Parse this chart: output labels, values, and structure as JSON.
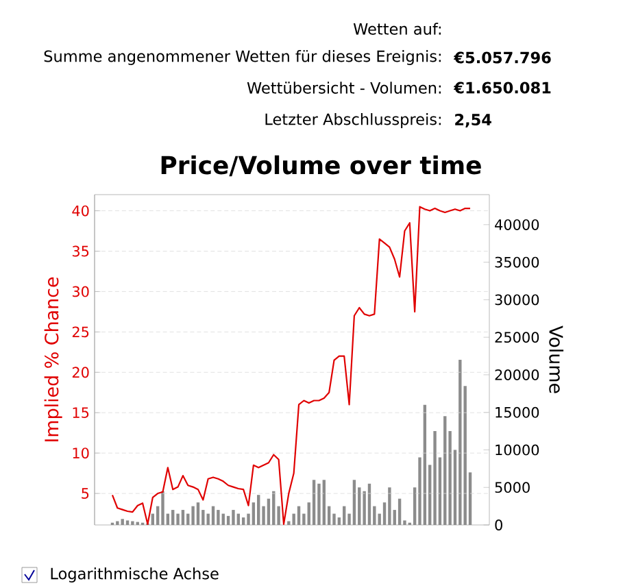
{
  "chart_data": {
    "type": "line",
    "title": "Price/Volume over time",
    "ylabel": "Implied % Chance",
    "y2label": "Volume",
    "categories": [
      null,
      null,
      null,
      null,
      null,
      null,
      null,
      null,
      null,
      null,
      null,
      null,
      null,
      null,
      null,
      null,
      null,
      null,
      null,
      null,
      null,
      null,
      null,
      null,
      null,
      null,
      null,
      null,
      null,
      null,
      null,
      null,
      null,
      null,
      null,
      null,
      null,
      null,
      null,
      null,
      null,
      null,
      null,
      null,
      null,
      null,
      null,
      null,
      null,
      null,
      null,
      null,
      null,
      null,
      null,
      null,
      null,
      null,
      null,
      null,
      null,
      null,
      null,
      null,
      null,
      null,
      null,
      null,
      null,
      null,
      null,
      null
    ],
    "series": [
      {
        "type": "bar",
        "axis": "y2",
        "color": "#8c8c8c",
        "values": [
          300,
          500,
          800,
          600,
          500,
          400,
          300,
          200,
          1500,
          2500,
          4500,
          1500,
          2000,
          1500,
          2000,
          1500,
          2500,
          3000,
          2000,
          1500,
          2500,
          2000,
          1500,
          1200,
          2000,
          1500,
          1000,
          1500,
          3000,
          4000,
          2500,
          3500,
          4500,
          2500,
          null,
          500,
          1500,
          2500,
          1500,
          3000,
          6000,
          5500,
          6000,
          2500,
          1500,
          1000,
          2500,
          1500,
          6000,
          5000,
          4500,
          5500,
          2500,
          1500,
          3000,
          5000,
          2000,
          3500,
          600,
          300,
          5000,
          9000,
          16000,
          8000,
          12500,
          9000,
          14500,
          12500,
          10000,
          22000,
          18500,
          7000
        ]
      },
      {
        "color": "#e00000",
        "values": [
          4.8,
          3.2,
          3.0,
          2.8,
          2.7,
          3.5,
          3.8,
          1.2,
          4.5,
          5.0,
          5.2,
          8.2,
          5.5,
          5.8,
          7.2,
          6.0,
          5.8,
          5.5,
          4.2,
          6.8,
          7.0,
          6.8,
          6.5,
          6.0,
          5.8,
          5.6,
          5.5,
          3.5,
          8.5,
          8.2,
          8.5,
          8.8,
          9.8,
          9.2,
          1.2,
          5.0,
          7.5,
          16.0,
          16.5,
          16.2,
          16.5,
          16.5,
          16.8,
          17.5,
          21.5,
          22.0,
          22.0,
          16.0,
          27.0,
          28.0,
          27.2,
          27.0,
          27.2,
          36.5,
          36.0,
          35.5,
          34.0,
          31.8,
          37.5,
          38.5,
          27.5,
          40.5,
          40.2,
          40.0,
          40.3,
          40.0,
          39.8,
          40.0,
          40.2,
          40.0,
          40.3,
          40.3
        ]
      }
    ],
    "ylim": [
      1.1,
      42
    ],
    "yticks": [
      5,
      10,
      15,
      20,
      25,
      30,
      35,
      40
    ],
    "y2lim": [
      0,
      44000
    ],
    "y2ticks": [
      0,
      5000,
      10000,
      15000,
      20000,
      25000,
      30000,
      35000,
      40000
    ],
    "grid": "y",
    "annotations": [
      "Wetten auf:",
      "Summe angenommener Wetten für dieses Ereignis:",
      "€5.057.796",
      "Wettübersicht - Volumen:",
      "€1.650.081",
      "Letzter Abschlusspreis:",
      "2,54",
      "Logarithmische Achse"
    ]
  }
}
